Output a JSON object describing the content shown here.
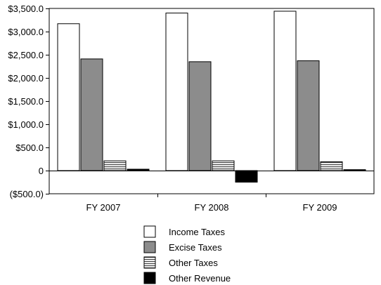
{
  "chart_data": {
    "type": "bar",
    "title": "",
    "xlabel": "",
    "ylabel": "",
    "categories": [
      "FY 2007",
      "FY 2008",
      "FY 2009"
    ],
    "ylim": [
      -500,
      3500
    ],
    "yticks": [
      -500,
      0,
      500,
      1000,
      1500,
      2000,
      2500,
      3000,
      3500
    ],
    "ytick_labels": [
      "($500.0)",
      "0",
      "$500.0",
      "$1,000.0",
      "$1,500.0",
      "$2,000.0",
      "$2,500.0",
      "$3,000.0",
      "$3,500.0"
    ],
    "grid": false,
    "legend_position": "bottom",
    "series": [
      {
        "name": "Income Taxes",
        "values": [
          3170,
          3400,
          3440
        ],
        "fill": "#ffffff",
        "pattern": "solid"
      },
      {
        "name": "Excise Taxes",
        "values": [
          2410,
          2350,
          2370
        ],
        "fill": "#8c8c8c",
        "pattern": "solid"
      },
      {
        "name": "Other Taxes",
        "values": [
          210,
          210,
          190
        ],
        "fill": "#ffffff",
        "pattern": "horizontal-lines"
      },
      {
        "name": "Other Revenue",
        "values": [
          30,
          -250,
          20
        ],
        "fill": "#000000",
        "pattern": "solid"
      }
    ]
  }
}
